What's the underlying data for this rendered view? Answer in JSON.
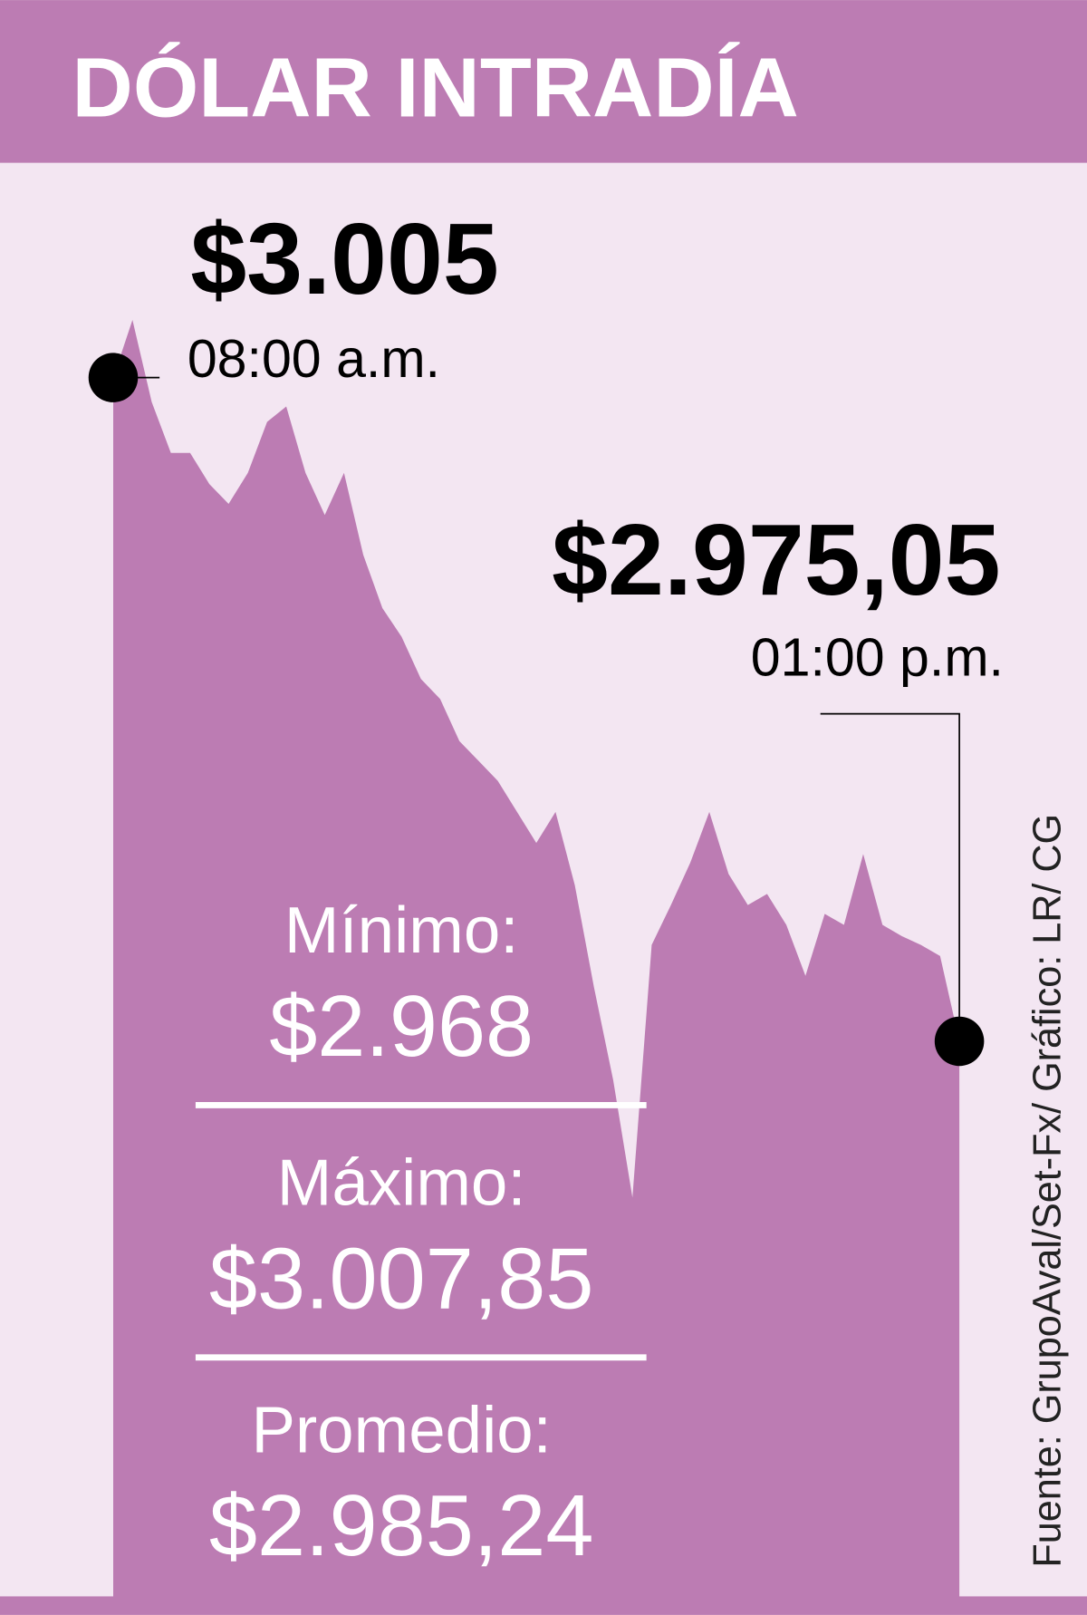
{
  "chart_data": {
    "type": "area",
    "title": "DÓLAR INTRADÍA",
    "color": "#bc7cb3",
    "values": [
      3005,
      3007.6,
      3003.9,
      3001.6,
      3001.6,
      3000.2,
      2999.3,
      3000.7,
      3003.0,
      3003.7,
      3000.7,
      2998.8,
      3000.7,
      2997.0,
      2994.6,
      2993.3,
      2991.4,
      2990.5,
      2988.6,
      2987.7,
      2986.8,
      2985.4,
      2984.0,
      2985.4,
      2982.1,
      2977.5,
      2973.3,
      2968,
      2979.4,
      2981.2,
      2983.1,
      2985.4,
      2982.6,
      2981.2,
      2981.7,
      2980.3,
      2978.0,
      2980.8,
      2980.3,
      2983.5,
      2980.3,
      2979.8,
      2979.4,
      2978.9,
      2975.05
    ],
    "ylim": [
      2950,
      3010
    ],
    "annotations": [
      {
        "value": 3005,
        "label": "$3.005",
        "time": "08:00 a.m."
      },
      {
        "value": 2975.05,
        "label": "$2.975,05",
        "time": "01:00 p.m."
      }
    ],
    "stats": [
      {
        "name": "Mínimo:",
        "value": 2968,
        "label": "$2.968"
      },
      {
        "name": "Máximo:",
        "value": 3007.85,
        "label": "$3.007,85"
      },
      {
        "name": "Promedio:",
        "value": 2985.24,
        "label": "$2.985,24"
      }
    ],
    "source": "Fuente: GrupoAval/Set-Fx/ Gráfico: LR/ CG"
  }
}
